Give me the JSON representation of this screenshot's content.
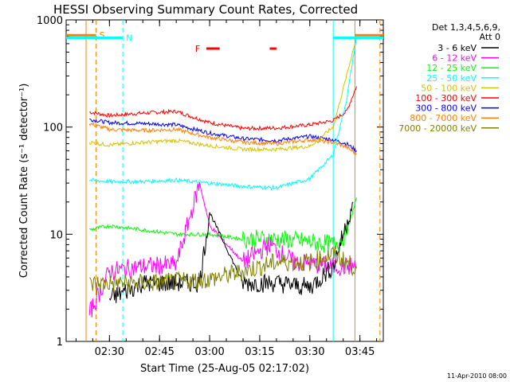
{
  "chart_data": {
    "type": "line",
    "title": "HESSI Observing Summary Count Rates, Corrected",
    "xlabel": "Start Time (25-Aug-05 02:17:02)",
    "ylabel": "Corrected Count Rate (s⁻¹ detector⁻¹)",
    "yscale": "log",
    "ylim": [
      1,
      1000
    ],
    "y_ticks": [
      {
        "value": 1,
        "label": "1"
      },
      {
        "value": 10,
        "label": "10"
      },
      {
        "value": 100,
        "label": "100"
      },
      {
        "value": 1000,
        "label": "1000"
      }
    ],
    "x_ticks": [
      "02:30",
      "02:45",
      "03:00",
      "03:15",
      "03:30",
      "03:45"
    ],
    "xlim": [
      "02:17:02",
      "03:52:00"
    ],
    "legend": {
      "placement": "right",
      "header": [
        "Det 1,3,4,5,6,9,",
        "Att 0"
      ],
      "entries": [
        {
          "label": "3 - 6 keV",
          "color": "#000000"
        },
        {
          "label": "6 - 12 keV",
          "color": "#ff00ff"
        },
        {
          "label": "12 - 25 keV",
          "color": "#00ff00"
        },
        {
          "label": "25 - 50 keV",
          "color": "#00ffff"
        },
        {
          "label": "50 - 100 keV",
          "color": "#d4c200"
        },
        {
          "label": "100 - 300 keV",
          "color": "#ff0000"
        },
        {
          "label": "300 - 800 keV",
          "color": "#0000ff"
        },
        {
          "label": "800 - 7000 keV",
          "color": "#ff8000"
        },
        {
          "label": "7000 - 20000 keV",
          "color": "#808000"
        }
      ]
    },
    "series": [
      {
        "color": "#ff0000",
        "x": [
          "02:24",
          "02:30",
          "02:40",
          "02:50",
          "03:00",
          "03:10",
          "03:20",
          "03:30",
          "03:37",
          "03:41",
          "03:44"
        ],
        "y": [
          138,
          128,
          135,
          140,
          110,
          97,
          98,
          105,
          115,
          140,
          240
        ]
      },
      {
        "color": "#0000ff",
        "x": [
          "02:24",
          "02:30",
          "02:40",
          "02:50",
          "03:00",
          "03:10",
          "03:20",
          "03:30",
          "03:37",
          "03:41",
          "03:44"
        ],
        "y": [
          118,
          110,
          108,
          105,
          88,
          78,
          75,
          82,
          76,
          70,
          60
        ]
      },
      {
        "color": "#ff8000",
        "x": [
          "02:24",
          "02:30",
          "02:40",
          "02:50",
          "03:00",
          "03:10",
          "03:20",
          "03:30",
          "03:37",
          "03:41",
          "03:44"
        ],
        "y": [
          108,
          95,
          93,
          95,
          80,
          72,
          70,
          76,
          72,
          65,
          56
        ]
      },
      {
        "color": "#d4c200",
        "x": [
          "02:24",
          "02:30",
          "02:40",
          "02:50",
          "03:00",
          "03:10",
          "03:20",
          "03:30",
          "03:37",
          "03:41",
          "03:44"
        ],
        "y": [
          72,
          68,
          72,
          75,
          67,
          62,
          62,
          66,
          100,
          300,
          700
        ]
      },
      {
        "color": "#00ffff",
        "x": [
          "02:24",
          "02:30",
          "02:40",
          "02:50",
          "03:00",
          "03:10",
          "03:20",
          "03:30",
          "03:37",
          "03:41",
          "03:44"
        ],
        "y": [
          32,
          31,
          31,
          32,
          30,
          28,
          27,
          33,
          55,
          180,
          700
        ]
      },
      {
        "color": "#00ff00",
        "x": [
          "02:24",
          "02:30",
          "02:40",
          "02:50",
          "03:00",
          "03:10",
          "03:20",
          "03:30",
          "03:37",
          "03:41",
          "03:44"
        ],
        "y": [
          11,
          12,
          11,
          10,
          10,
          9,
          9,
          8.5,
          8,
          10,
          22
        ]
      },
      {
        "color": "#ff00ff",
        "x": [
          "02:24",
          "02:30",
          "02:40",
          "02:50",
          "02:57",
          "03:00",
          "03:10",
          "03:18",
          "03:25",
          "03:37",
          "03:44"
        ],
        "y": [
          1.8,
          4.5,
          5,
          5.2,
          30,
          12,
          5.5,
          8,
          5.5,
          5,
          5
        ]
      },
      {
        "color": "#000000",
        "x": [
          "02:30",
          "02:40",
          "02:50",
          "02:57",
          "03:00",
          "03:10",
          "03:20",
          "03:30",
          "03:37",
          "03:43"
        ],
        "y": [
          2.5,
          3.5,
          3.5,
          3.5,
          16,
          3.5,
          3.5,
          3.2,
          5,
          20
        ]
      },
      {
        "color": "#808000",
        "x": [
          "02:24",
          "02:30",
          "02:40",
          "02:50",
          "03:00",
          "03:10",
          "03:20",
          "03:30",
          "03:37",
          "03:44"
        ],
        "y": [
          3.4,
          3.5,
          3.5,
          3.6,
          3.8,
          4.5,
          5.5,
          5.5,
          6.5,
          4.8
        ]
      }
    ],
    "annotations": {
      "flags": [
        {
          "label": "S",
          "color": "#ff8000",
          "x_start": "02:17:02",
          "x_end": "02:26:00",
          "y": 720
        },
        {
          "label": "N",
          "color": "#00ffff",
          "x_start": "02:17:02",
          "x_end": "02:34:00",
          "y": 680
        },
        {
          "label": "F",
          "color": "#ff0000",
          "segments": [
            [
              "02:59:00",
              "03:03:00"
            ],
            [
              "03:18:00",
              "03:20:00"
            ]
          ],
          "y": 540
        }
      ],
      "vertical_lines": [
        {
          "x": "02:23:00",
          "color": "#ff8000",
          "style": "solid"
        },
        {
          "x": "02:26:00",
          "color": "#ff8000",
          "style": "dashed"
        },
        {
          "x": "02:34:00",
          "color": "#00ffff",
          "style": "dashed"
        },
        {
          "x": "03:37:00",
          "color": "#00ffff",
          "style": "solid"
        },
        {
          "x": "03:43:30",
          "color": "#ff8000",
          "style": "solid"
        },
        {
          "x": "03:51:00",
          "color": "#ff8000",
          "style": "dashed"
        }
      ],
      "right_flags": [
        {
          "color": "#00ffff",
          "x_start": "03:37:00",
          "x_end": "03:52:00",
          "y": 680
        },
        {
          "color": "#ff8000",
          "x_start": "03:43:30",
          "x_end": "03:52:00",
          "y": 720
        }
      ]
    },
    "grid": false
  },
  "footer_date": "11-Apr-2010 08:00"
}
